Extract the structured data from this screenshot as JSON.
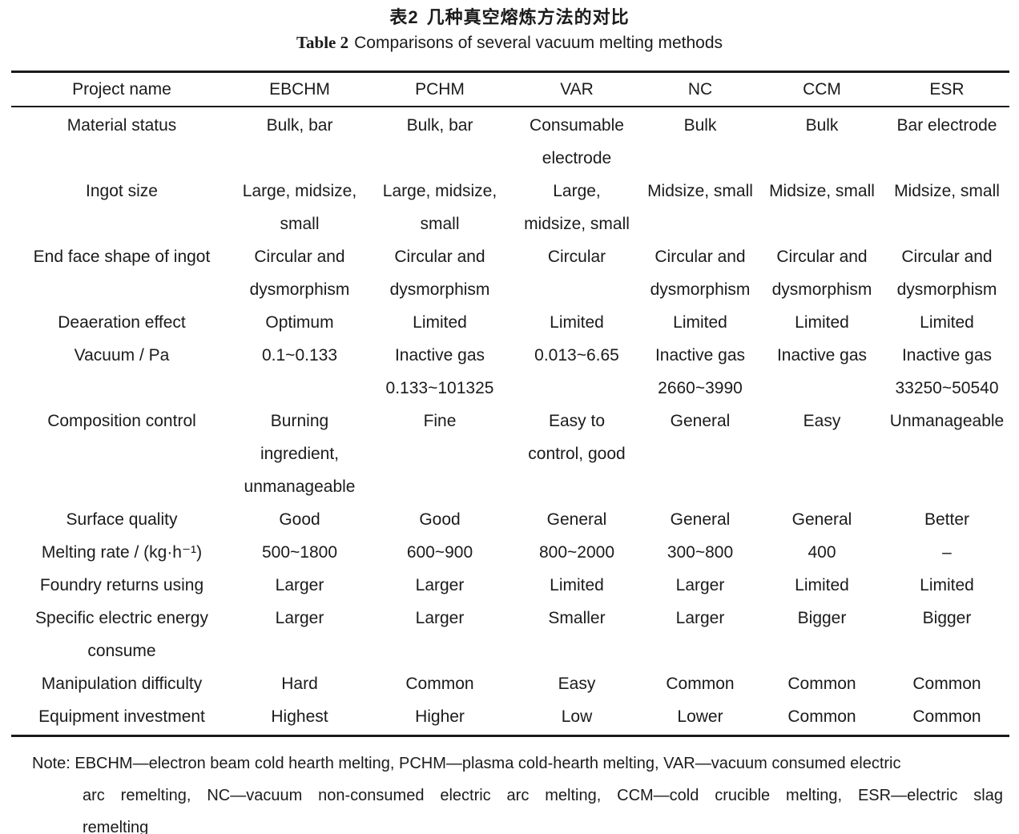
{
  "titles": {
    "zh": {
      "label": "表2",
      "text": "几种真空熔炼方法的对比"
    },
    "en": {
      "label": "Table 2",
      "text": "Comparisons of several vacuum melting methods"
    }
  },
  "table": {
    "columns": [
      "Project name",
      "EBCHM",
      "PCHM",
      "VAR",
      "NC",
      "CCM",
      "ESR"
    ],
    "rows": [
      {
        "name": "Material status",
        "cells": [
          "Bulk, bar",
          "Bulk, bar",
          "Consumable\nelectrode",
          "Bulk",
          "Bulk",
          "Bar electrode"
        ]
      },
      {
        "name": "Ingot size",
        "cells": [
          "Large, midsize,\nsmall",
          "Large, midsize,\nsmall",
          "Large,\nmidsize, small",
          "Midsize, small",
          "Midsize, small",
          "Midsize, small"
        ]
      },
      {
        "name": "End face shape of ingot",
        "cells": [
          "Circular and\ndysmorphism",
          "Circular and\ndysmorphism",
          "Circular",
          "Circular and\ndysmorphism",
          "Circular and\ndysmorphism",
          "Circular and\ndysmorphism"
        ]
      },
      {
        "name": "Deaeration effect",
        "cells": [
          "Optimum",
          "Limited",
          "Limited",
          "Limited",
          "Limited",
          "Limited"
        ]
      },
      {
        "name": "Vacuum / Pa",
        "cells": [
          "0.1~0.133",
          "Inactive gas\n0.133~101325",
          "0.013~6.65",
          "Inactive gas\n2660~3990",
          "Inactive gas",
          "Inactive gas\n33250~50540"
        ]
      },
      {
        "name": "Composition control",
        "cells": [
          "Burning\ningredient,\nunmanageable",
          "Fine",
          "Easy to\ncontrol, good",
          "General",
          "Easy",
          "Unmanageable"
        ]
      },
      {
        "name": "Surface quality",
        "cells": [
          "Good",
          "Good",
          "General",
          "General",
          "General",
          "Better"
        ]
      },
      {
        "name": "Melting rate / (kg·h⁻¹)",
        "cells": [
          "500~1800",
          "600~900",
          "800~2000",
          "300~800",
          "400",
          "–"
        ]
      },
      {
        "name": "Foundry returns using",
        "cells": [
          "Larger",
          "Larger",
          "Limited",
          "Larger",
          "Limited",
          "Limited"
        ]
      },
      {
        "name": "Specific electric energy\nconsume",
        "cells": [
          "Larger",
          "Larger",
          "Smaller",
          "Larger",
          "Bigger",
          "Bigger"
        ]
      },
      {
        "name": "Manipulation difficulty",
        "cells": [
          "Hard",
          "Common",
          "Easy",
          "Common",
          "Common",
          "Common"
        ]
      },
      {
        "name": "Equipment investment",
        "cells": [
          "Highest",
          "Higher",
          "Low",
          "Lower",
          "Common",
          "Common"
        ]
      }
    ]
  },
  "note": {
    "lines": [
      "Note: EBCHM—electron beam cold hearth melting, PCHM—plasma cold-hearth melting, VAR—vacuum consumed electric",
      "arc remelting, NC—vacuum non-consumed electric arc melting, CCM—cold crucible melting, ESR—electric slag",
      "remelting"
    ]
  },
  "colors": {
    "text": "#1b1b1b",
    "rule": "#1a1a1a",
    "background": "#ffffff"
  }
}
